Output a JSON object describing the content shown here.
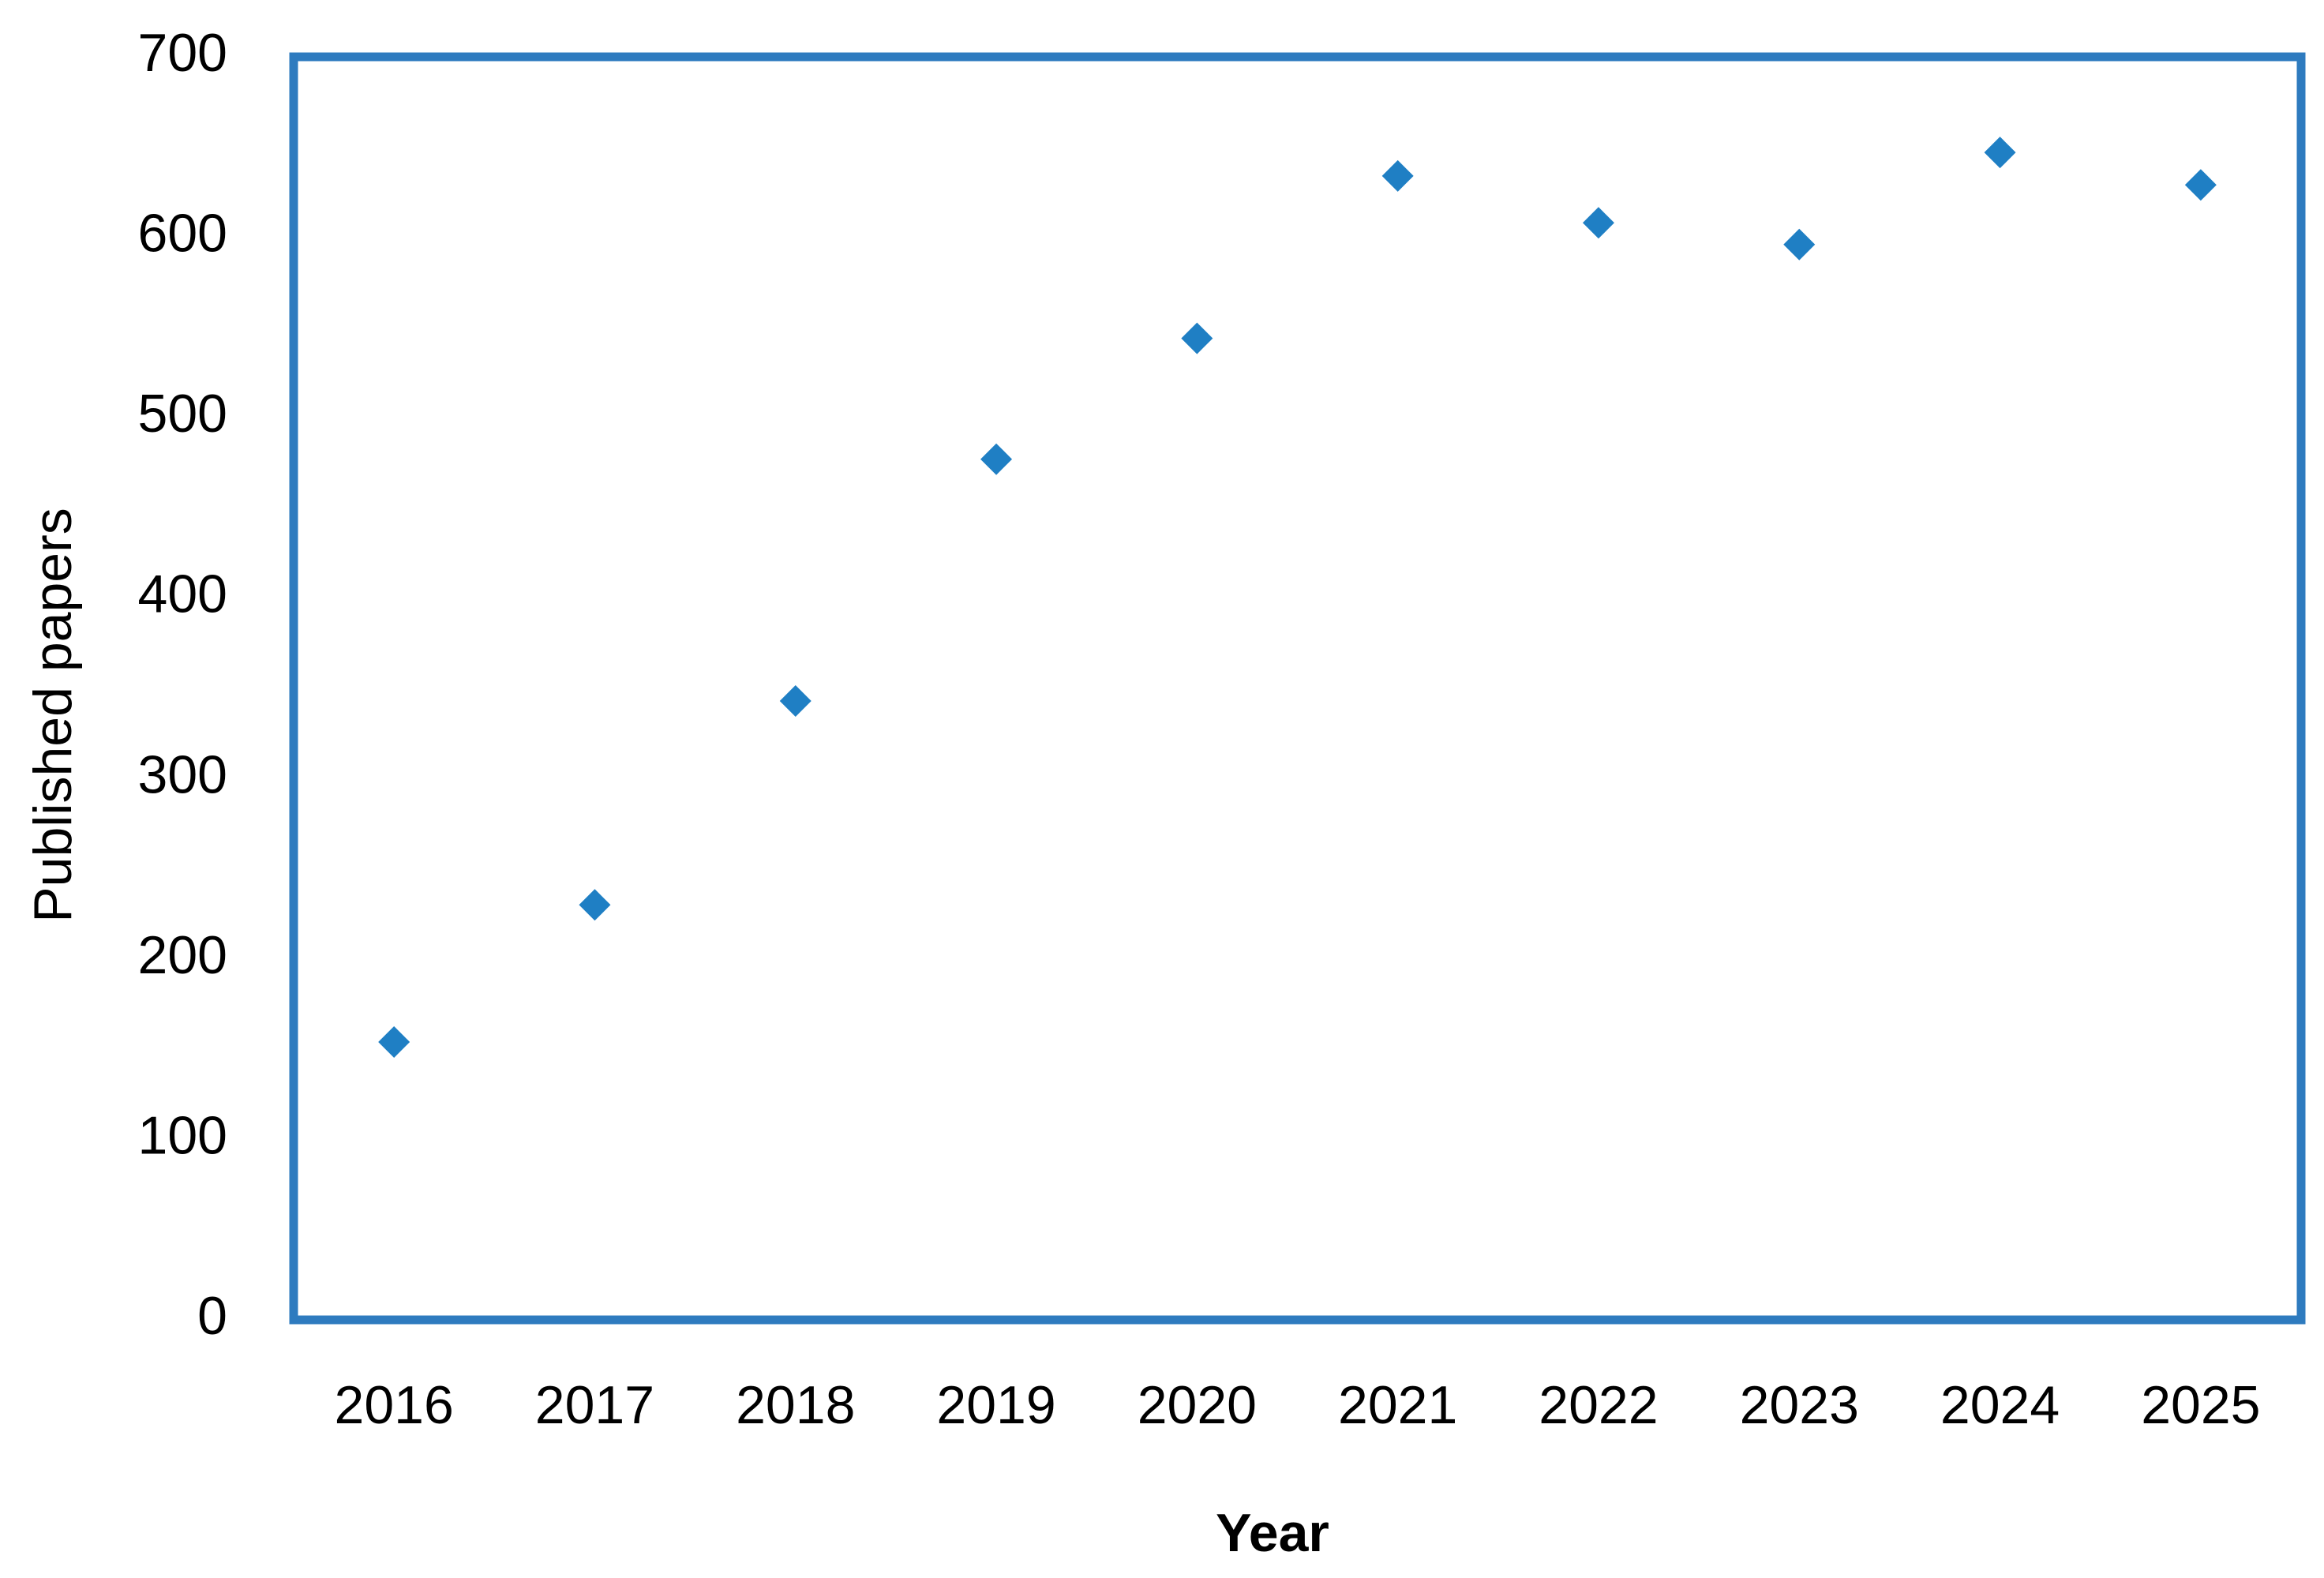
{
  "chart_data": {
    "type": "scatter",
    "x_label": "Year",
    "y_label": "Published papers",
    "categories": [
      "2016",
      "2017",
      "2018",
      "2019",
      "2020",
      "2021",
      "2022",
      "2023",
      "2024",
      "2025"
    ],
    "values": [
      154,
      230,
      343,
      477,
      544,
      634,
      608,
      596,
      647,
      629
    ],
    "color": "#1f7fc4",
    "marker": "diamond",
    "frame_color": "#2e7bbf",
    "ylim": [
      0,
      700
    ],
    "yticks": [
      0,
      100,
      200,
      300,
      400,
      500,
      600,
      700
    ],
    "grid": false
  }
}
